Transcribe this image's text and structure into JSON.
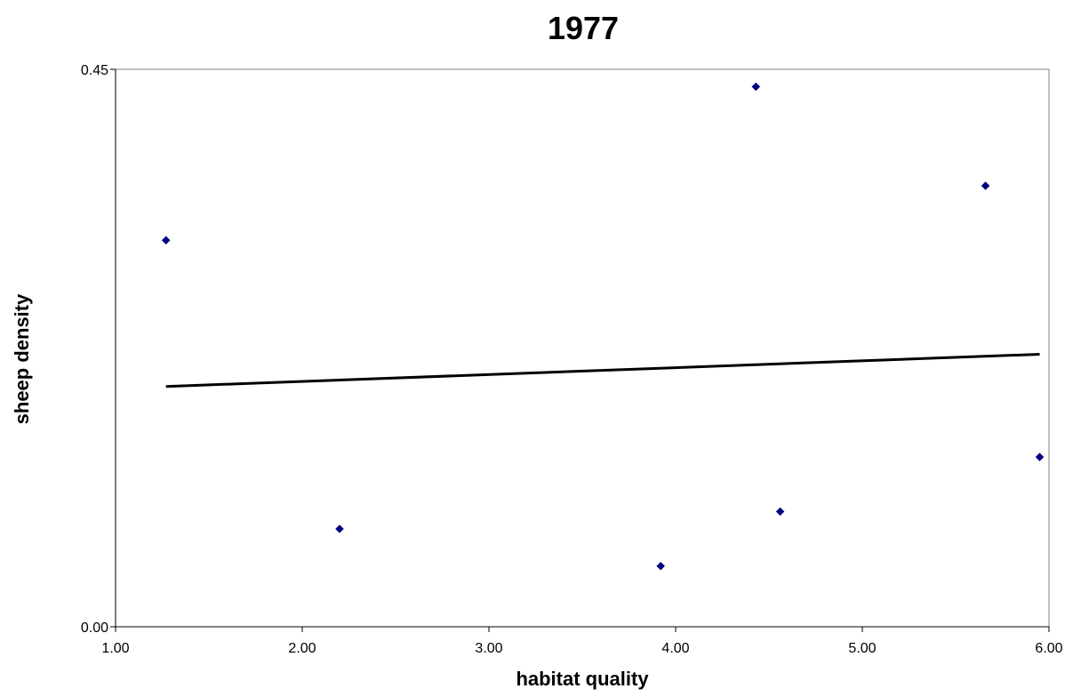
{
  "chart_data": {
    "type": "scatter",
    "title": "1977",
    "xlabel": "habitat quality",
    "ylabel": "sheep density",
    "xlim": [
      1.0,
      6.0
    ],
    "ylim": [
      0.0,
      0.45
    ],
    "x_ticks": [
      "1.00",
      "2.00",
      "3.00",
      "4.00",
      "5.00",
      "6.00"
    ],
    "y_ticks": [
      "0.00",
      "0.45"
    ],
    "grid": false,
    "legend": "none",
    "series": [
      {
        "marker": "diamond",
        "color": "#000080",
        "points": [
          {
            "x": 1.27,
            "y": 0.312
          },
          {
            "x": 2.2,
            "y": 0.079
          },
          {
            "x": 3.92,
            "y": 0.049
          },
          {
            "x": 4.43,
            "y": 0.436
          },
          {
            "x": 4.56,
            "y": 0.093
          },
          {
            "x": 5.66,
            "y": 0.356
          },
          {
            "x": 5.95,
            "y": 0.137
          }
        ]
      }
    ],
    "trendline": {
      "color": "#000000",
      "x": [
        1.27,
        5.95
      ],
      "y": [
        0.194,
        0.22
      ]
    }
  }
}
